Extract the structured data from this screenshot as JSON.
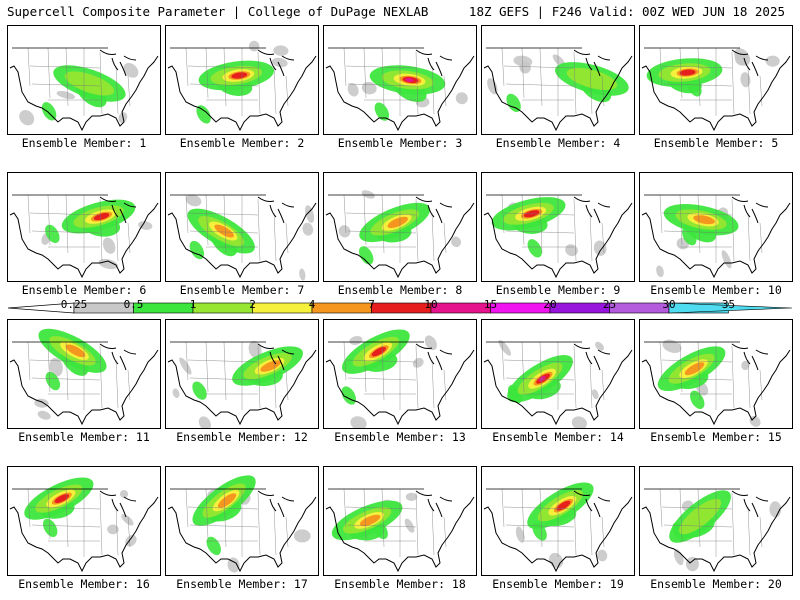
{
  "header": {
    "left_title": "Supercell Composite Parameter | College of DuPage NEXLAB",
    "right_title": "18Z GEFS | F246 Valid: 00Z WED JUN 18 2025"
  },
  "colorbar": {
    "ticks": [
      "0.25",
      "0.5",
      "1",
      "2",
      "4",
      "7",
      "10",
      "15",
      "20",
      "25",
      "30",
      "35"
    ],
    "colors": [
      "#c8c8c8",
      "#3ce63c",
      "#96e632",
      "#f5f03c",
      "#f5961e",
      "#e61e1e",
      "#e6148c",
      "#f014f0",
      "#9614dc",
      "#b45adc",
      "#50dcf0"
    ]
  },
  "members": [
    {
      "label": "Ensemble Member: 1",
      "intensity": 1
    },
    {
      "label": "Ensemble Member: 2",
      "intensity": 3
    },
    {
      "label": "Ensemble Member: 3",
      "intensity": 4
    },
    {
      "label": "Ensemble Member: 4",
      "intensity": 1
    },
    {
      "label": "Ensemble Member: 5",
      "intensity": 3
    },
    {
      "label": "Ensemble Member: 6",
      "intensity": 3
    },
    {
      "label": "Ensemble Member: 7",
      "intensity": 2
    },
    {
      "label": "Ensemble Member: 8",
      "intensity": 2
    },
    {
      "label": "Ensemble Member: 9",
      "intensity": 3
    },
    {
      "label": "Ensemble Member: 10",
      "intensity": 2
    },
    {
      "label": "Ensemble Member: 11",
      "intensity": 2
    },
    {
      "label": "Ensemble Member: 12",
      "intensity": 2
    },
    {
      "label": "Ensemble Member: 13",
      "intensity": 3
    },
    {
      "label": "Ensemble Member: 14",
      "intensity": 4
    },
    {
      "label": "Ensemble Member: 15",
      "intensity": 2
    },
    {
      "label": "Ensemble Member: 16",
      "intensity": 3
    },
    {
      "label": "Ensemble Member: 17",
      "intensity": 2
    },
    {
      "label": "Ensemble Member: 18",
      "intensity": 2
    },
    {
      "label": "Ensemble Member: 19",
      "intensity": 3
    },
    {
      "label": "Ensemble Member: 20",
      "intensity": 1
    }
  ]
}
